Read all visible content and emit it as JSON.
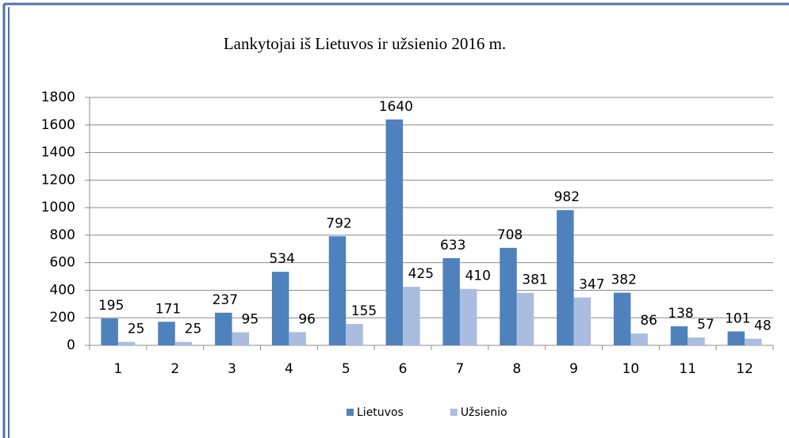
{
  "chart_data": {
    "type": "bar",
    "title": "Lankytojai iš Lietuvos ir užsienio 2016 m.",
    "categories": [
      "1",
      "2",
      "3",
      "4",
      "5",
      "6",
      "7",
      "8",
      "9",
      "10",
      "11",
      "12"
    ],
    "series": [
      {
        "name": "Lietuvos",
        "color": "#4f81bd",
        "values": [
          195,
          171,
          237,
          534,
          792,
          1640,
          633,
          708,
          982,
          382,
          138,
          101
        ]
      },
      {
        "name": "Užsienio",
        "color": "#aabde0",
        "values": [
          25,
          25,
          95,
          96,
          155,
          425,
          410,
          381,
          347,
          86,
          57,
          48
        ]
      }
    ],
    "ylim": [
      0,
      1800
    ],
    "yticks": [
      0,
      200,
      400,
      600,
      800,
      1000,
      1200,
      1400,
      1600,
      1800
    ],
    "grid": true,
    "legend": "bottom"
  }
}
